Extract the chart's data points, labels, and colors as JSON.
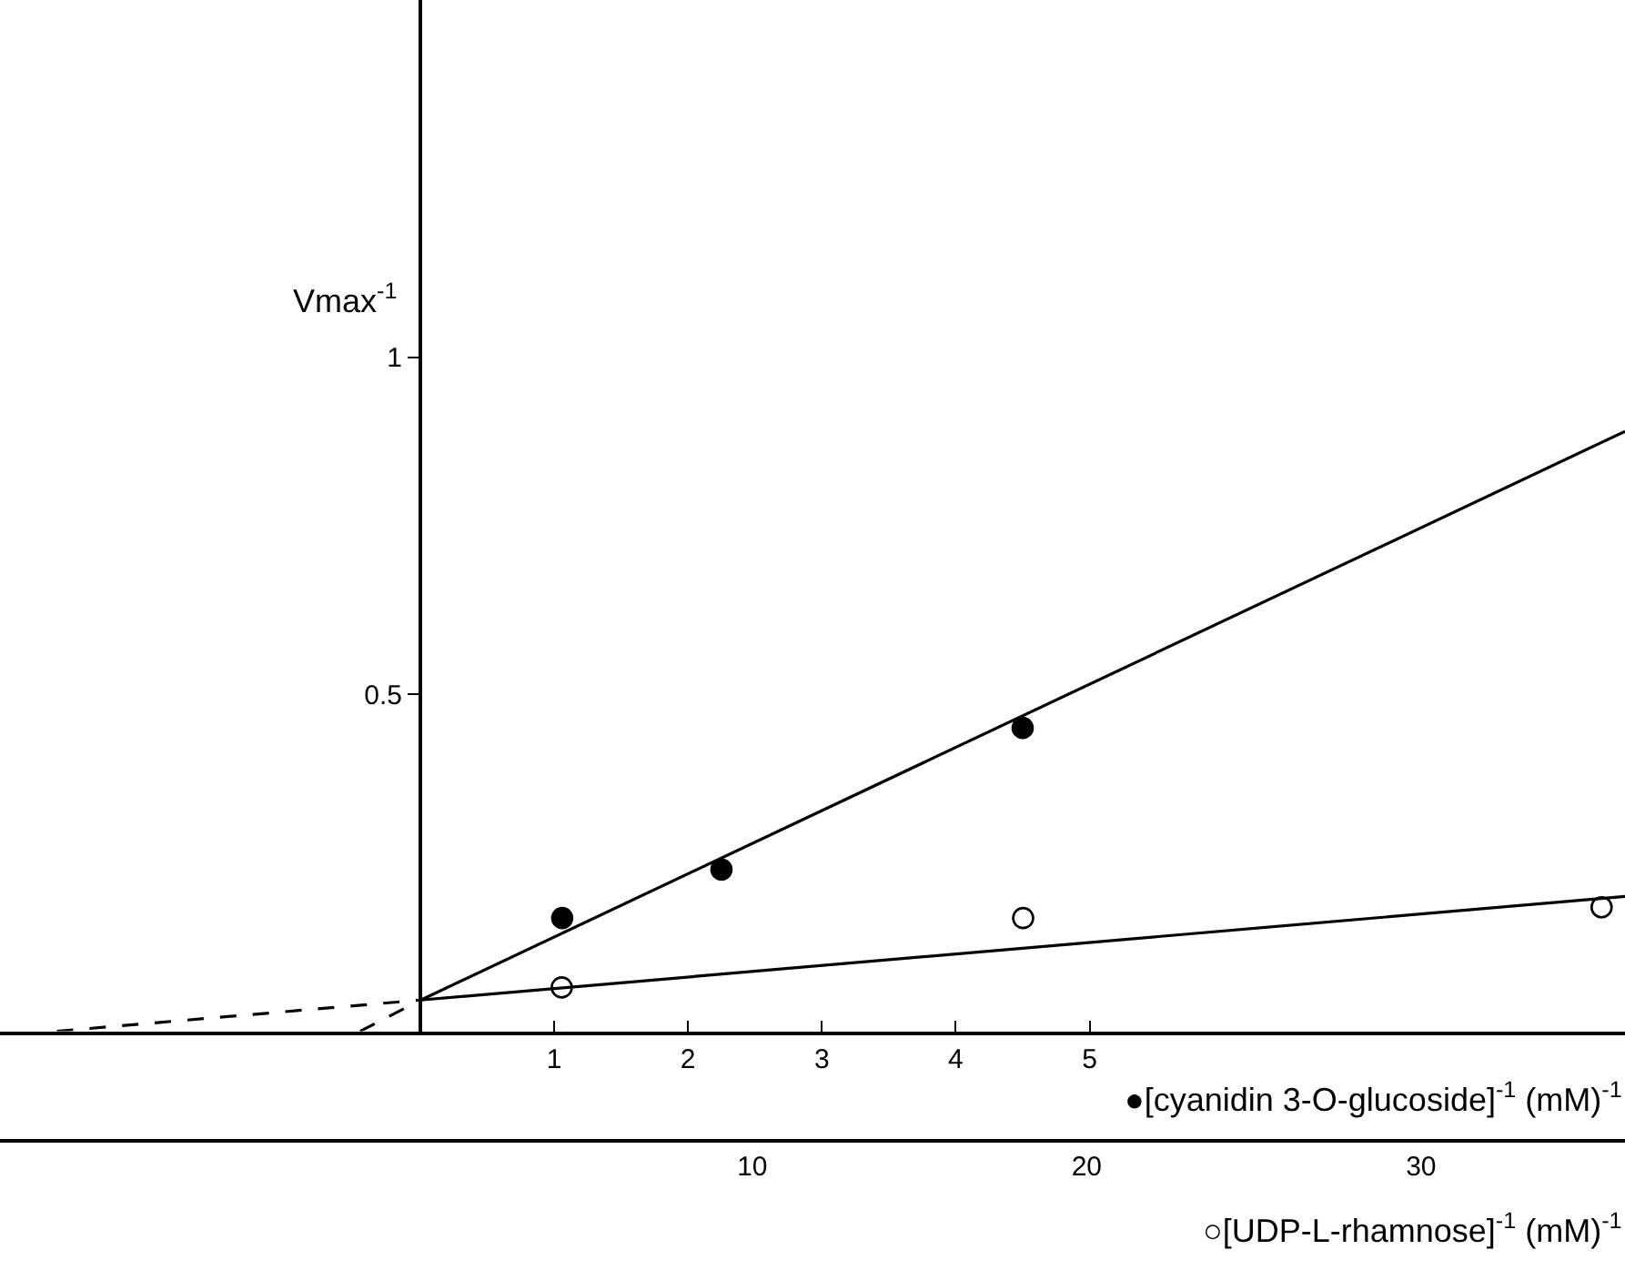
{
  "chart_data": {
    "type": "scatter",
    "xlabel": "●[cyanidin 3-O-glucoside]$^{-1}$ (mM)$^{-1}$",
    "x2label": "○[UDP-L-rhamnose]$^{-1}$ (mM)$^{-1}$",
    "ylabel": "Vmax$^{-1}$",
    "xlim": [
      -3.14,
      9.0
    ],
    "xticks": [
      1,
      2,
      3,
      4,
      5
    ],
    "x2lim": [
      -12.5,
      36.1
    ],
    "x2ticks": [
      10,
      20,
      30
    ],
    "ylim": [
      0,
      1.53
    ],
    "yticks": [
      0.5,
      1
    ],
    "grid": false,
    "series": [
      {
        "marker": "circle",
        "color": "#000000",
        "x": [
          1.06,
          2.25,
          4.5
        ],
        "values": [
          0.168,
          0.24,
          0.45
        ]
      },
      {
        "type": "line",
        "line_style": "solid",
        "color": "#000000",
        "x": [
          0,
          9.0
        ],
        "values": [
          0.046,
          0.89
        ]
      },
      {
        "type": "line",
        "line_style": "dashed",
        "color": "#000000",
        "x": [
          -0.45,
          0
        ],
        "values": [
          0,
          0.046
        ]
      },
      {
        "axis": "x2",
        "marker": "circle",
        "color": "#ffffff",
        "x": [
          4.3,
          18.1,
          35.4
        ],
        "values": [
          0.065,
          0.168,
          0.184
        ]
      },
      {
        "type": "line",
        "axis": "x2",
        "line_style": "solid",
        "color": "#000000",
        "x": [
          0,
          36.1
        ],
        "values": [
          0.046,
          0.2
        ]
      },
      {
        "type": "line",
        "axis": "x2",
        "line_style": "dashed",
        "color": "#000000",
        "x": [
          -10.8,
          0
        ],
        "values": [
          0,
          0.046
        ]
      }
    ]
  }
}
